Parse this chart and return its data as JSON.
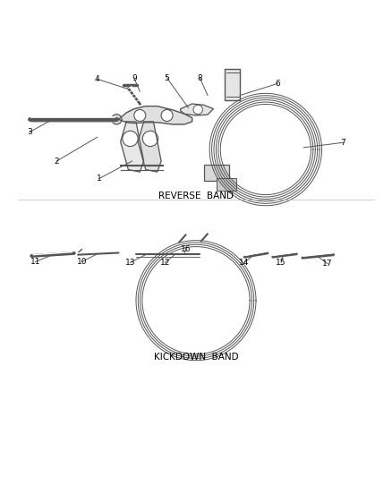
{
  "background_color": "#ffffff",
  "line_color": "#555555",
  "text_color": "#000000",
  "section1_label": "REVERSE  BAND",
  "section2_label": "KICKDOWN  BAND",
  "fig_width": 4.38,
  "fig_height": 5.33,
  "dpi": 100
}
